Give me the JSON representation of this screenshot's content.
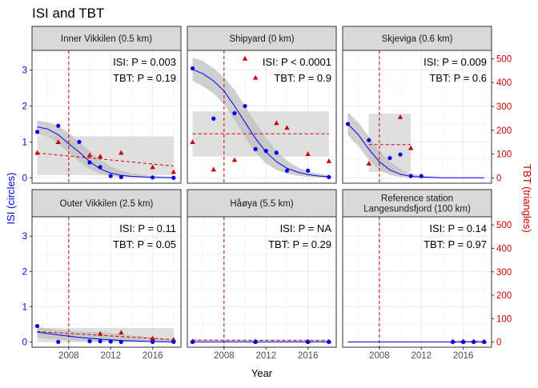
{
  "chart_data": {
    "type": "scatter",
    "title": "ISI and TBT",
    "xlabel": "Year",
    "ylabel_left": "ISI (circles)",
    "ylabel_right": "TBT (triangles)",
    "xlim": [
      2004.5,
      2018.7
    ],
    "x_ticks": [
      2008,
      2012,
      2016
    ],
    "x_tick_labels": [
      "2008",
      "2012",
      "2016"
    ],
    "ylim_left": [
      -0.15,
      3.55
    ],
    "y_ticks_left": [
      0,
      1,
      2,
      3
    ],
    "y_tick_labels_left": [
      "0",
      "1",
      "2",
      "3"
    ],
    "ylim_right": [
      -22,
      535
    ],
    "y_ticks_right": [
      0,
      100,
      200,
      300,
      400,
      500
    ],
    "y_tick_labels_right": [
      "0",
      "100",
      "200",
      "300",
      "400",
      "500"
    ],
    "ban_year": 2008,
    "grid": true,
    "colors": {
      "isi": "#0000ee",
      "tbt": "#cc0000",
      "band": "#d9d9d9",
      "strip": "#d9d9d9",
      "panel_border": "#333333",
      "grid": "#ebebeb"
    },
    "panels": [
      {
        "title": "Inner Vikkilen (0.5 km)",
        "title_lines": [
          "Inner Vikkilen (0.5 km)"
        ],
        "isi_p": "ISI: P =  0.003",
        "tbt_p": "TBT: P =  0.19",
        "isi_points": [
          [
            2005,
            1.28
          ],
          [
            2007,
            1.45
          ],
          [
            2009,
            1.0
          ],
          [
            2010,
            0.43
          ],
          [
            2011,
            0.3
          ],
          [
            2012,
            0.05
          ],
          [
            2013,
            0.02
          ],
          [
            2016,
            0.01
          ],
          [
            2018,
            0.0
          ]
        ],
        "isi_fit": [
          [
            2005,
            1.42
          ],
          [
            2006,
            1.36
          ],
          [
            2007,
            1.2
          ],
          [
            2008,
            0.95
          ],
          [
            2009,
            0.72
          ],
          [
            2010,
            0.45
          ],
          [
            2011,
            0.25
          ],
          [
            2012,
            0.13
          ],
          [
            2013,
            0.07
          ],
          [
            2014,
            0.04
          ],
          [
            2016,
            0.01
          ],
          [
            2018,
            0.0
          ]
        ],
        "isi_band_upper": [
          [
            2005,
            1.6
          ],
          [
            2006,
            1.55
          ],
          [
            2007,
            1.45
          ],
          [
            2008,
            1.25
          ],
          [
            2009,
            1.0
          ],
          [
            2010,
            0.75
          ],
          [
            2011,
            0.5
          ],
          [
            2012,
            0.32
          ],
          [
            2013,
            0.2
          ],
          [
            2014,
            0.12
          ],
          [
            2016,
            0.05
          ],
          [
            2018,
            0.03
          ]
        ],
        "isi_band_lower": [
          [
            2005,
            1.2
          ],
          [
            2006,
            1.15
          ],
          [
            2007,
            0.95
          ],
          [
            2008,
            0.7
          ],
          [
            2009,
            0.45
          ],
          [
            2010,
            0.25
          ],
          [
            2011,
            0.11
          ],
          [
            2012,
            0.05
          ],
          [
            2013,
            0.02
          ],
          [
            2014,
            0.01
          ],
          [
            2016,
            0.0
          ],
          [
            2018,
            0.0
          ]
        ],
        "tbt_points": [
          [
            2005,
            105
          ],
          [
            2007,
            150
          ],
          [
            2010,
            95
          ],
          [
            2011,
            90
          ],
          [
            2013,
            105
          ],
          [
            2016,
            45
          ],
          [
            2018,
            25
          ]
        ],
        "tbt_fit": [
          [
            2005,
            105
          ],
          [
            2018,
            50
          ]
        ],
        "tbt_band": {
          "x": [
            2005,
            2018
          ],
          "lower": 12,
          "upper": 175
        }
      },
      {
        "title": "Shipyard (0 km)",
        "title_lines": [
          "Shipyard (0 km)"
        ],
        "isi_p": "ISI: P < 0.0001",
        "tbt_p": "TBT: P =  0.9",
        "isi_points": [
          [
            2005,
            3.05
          ],
          [
            2007,
            1.65
          ],
          [
            2009,
            1.8
          ],
          [
            2010,
            2.0
          ],
          [
            2011,
            0.8
          ],
          [
            2012,
            0.75
          ],
          [
            2013,
            0.7
          ],
          [
            2014,
            0.2
          ],
          [
            2016,
            0.2
          ],
          [
            2018,
            0.02
          ]
        ],
        "isi_fit": [
          [
            2005,
            3.02
          ],
          [
            2006,
            2.9
          ],
          [
            2007,
            2.7
          ],
          [
            2008,
            2.42
          ],
          [
            2009,
            2.0
          ],
          [
            2010,
            1.55
          ],
          [
            2011,
            1.1
          ],
          [
            2012,
            0.72
          ],
          [
            2013,
            0.45
          ],
          [
            2014,
            0.27
          ],
          [
            2015,
            0.16
          ],
          [
            2016,
            0.09
          ],
          [
            2017,
            0.05
          ],
          [
            2018,
            0.03
          ]
        ],
        "isi_band_upper": [
          [
            2005,
            3.35
          ],
          [
            2006,
            3.25
          ],
          [
            2007,
            3.05
          ],
          [
            2008,
            2.8
          ],
          [
            2009,
            2.45
          ],
          [
            2010,
            2.0
          ],
          [
            2011,
            1.55
          ],
          [
            2012,
            1.1
          ],
          [
            2013,
            0.75
          ],
          [
            2014,
            0.48
          ],
          [
            2015,
            0.3
          ],
          [
            2016,
            0.18
          ],
          [
            2017,
            0.11
          ],
          [
            2018,
            0.07
          ]
        ],
        "isi_band_lower": [
          [
            2005,
            2.7
          ],
          [
            2006,
            2.55
          ],
          [
            2007,
            2.35
          ],
          [
            2008,
            2.05
          ],
          [
            2009,
            1.6
          ],
          [
            2010,
            1.15
          ],
          [
            2011,
            0.7
          ],
          [
            2012,
            0.4
          ],
          [
            2013,
            0.22
          ],
          [
            2014,
            0.12
          ],
          [
            2015,
            0.06
          ],
          [
            2016,
            0.03
          ],
          [
            2017,
            0.01
          ],
          [
            2018,
            0.0
          ]
        ],
        "tbt_points": [
          [
            2005,
            150
          ],
          [
            2007,
            35
          ],
          [
            2009,
            75
          ],
          [
            2010,
            500
          ],
          [
            2011,
            420
          ],
          [
            2013,
            230
          ],
          [
            2014,
            210
          ],
          [
            2016,
            100
          ],
          [
            2018,
            70
          ]
        ],
        "tbt_fit": [
          [
            2005,
            185
          ],
          [
            2018,
            185
          ]
        ],
        "tbt_band": {
          "x": [
            2005,
            2018
          ],
          "lower": 90,
          "upper": 280
        }
      },
      {
        "title": "Skjeviga (0.6 km)",
        "title_lines": [
          "Skjeviga (0.6 km)"
        ],
        "isi_p": "ISI: P =  0.009",
        "tbt_p": "TBT: P =  0.6",
        "isi_points": [
          [
            2005,
            1.5
          ],
          [
            2007,
            1.05
          ],
          [
            2009,
            0.55
          ],
          [
            2010,
            0.65
          ],
          [
            2011,
            0.05
          ],
          [
            2012,
            0.05
          ]
        ],
        "isi_fit": [
          [
            2005,
            1.5
          ],
          [
            2006,
            1.2
          ],
          [
            2007,
            0.8
          ],
          [
            2008,
            0.45
          ],
          [
            2009,
            0.22
          ],
          [
            2010,
            0.1
          ],
          [
            2011,
            0.04
          ],
          [
            2012,
            0.02
          ],
          [
            2014,
            0.0
          ],
          [
            2018,
            0.0
          ]
        ],
        "isi_band_upper": [
          [
            2005,
            1.82
          ],
          [
            2006,
            1.55
          ],
          [
            2007,
            1.15
          ],
          [
            2008,
            0.75
          ],
          [
            2009,
            0.45
          ],
          [
            2010,
            0.25
          ],
          [
            2011,
            0.12
          ],
          [
            2012,
            0.06
          ],
          [
            2014,
            0.02
          ],
          [
            2018,
            0.01
          ]
        ],
        "isi_band_lower": [
          [
            2005,
            1.18
          ],
          [
            2006,
            0.88
          ],
          [
            2007,
            0.5
          ],
          [
            2008,
            0.22
          ],
          [
            2009,
            0.08
          ],
          [
            2010,
            0.02
          ],
          [
            2011,
            0.01
          ],
          [
            2012,
            0.0
          ],
          [
            2014,
            0.0
          ],
          [
            2018,
            0.0
          ]
        ],
        "tbt_points": [
          [
            2007,
            60
          ],
          [
            2010,
            255
          ],
          [
            2011,
            125
          ]
        ],
        "tbt_fit": [
          [
            2007,
            140
          ],
          [
            2011,
            140
          ]
        ],
        "tbt_band": {
          "x": [
            2007,
            2011
          ],
          "lower": 25,
          "upper": 270
        }
      },
      {
        "title": "Outer Vikkilen (2.5 km)",
        "title_lines": [
          "Outer Vikkilen (2.5 km)"
        ],
        "isi_p": "ISI: P =  0.11",
        "tbt_p": "TBT: P =  0.05",
        "isi_points": [
          [
            2005,
            0.45
          ],
          [
            2007,
            0.0
          ],
          [
            2010,
            0.02
          ],
          [
            2011,
            0.02
          ],
          [
            2012,
            0.01
          ],
          [
            2013,
            0.0
          ],
          [
            2016,
            0.0
          ],
          [
            2018,
            0.0
          ]
        ],
        "isi_fit": [
          [
            2005,
            0.28
          ],
          [
            2007,
            0.2
          ],
          [
            2009,
            0.13
          ],
          [
            2011,
            0.08
          ],
          [
            2013,
            0.04
          ],
          [
            2016,
            0.01
          ],
          [
            2018,
            0.0
          ]
        ],
        "isi_band_upper": [
          [
            2005,
            0.42
          ],
          [
            2007,
            0.35
          ],
          [
            2009,
            0.3
          ],
          [
            2011,
            0.28
          ],
          [
            2013,
            0.22
          ],
          [
            2016,
            0.12
          ],
          [
            2018,
            0.08
          ]
        ],
        "isi_band_lower": [
          [
            2005,
            0.12
          ],
          [
            2007,
            0.07
          ],
          [
            2009,
            0.03
          ],
          [
            2011,
            0.01
          ],
          [
            2013,
            0.0
          ],
          [
            2016,
            0.0
          ],
          [
            2018,
            0.0
          ]
        ],
        "tbt_points": [
          [
            2011,
            35
          ],
          [
            2013,
            40
          ],
          [
            2016,
            15
          ],
          [
            2018,
            10
          ]
        ],
        "tbt_fit": [
          [
            2005,
            45
          ],
          [
            2018,
            10
          ]
        ],
        "tbt_band": {
          "x": [
            2005,
            2018
          ],
          "lower": 0,
          "upper": 60
        }
      },
      {
        "title": "Håøya (5.5 km)",
        "title_lines": [
          "Håøya (5.5 km)"
        ],
        "isi_p": "ISI: P =  NA",
        "tbt_p": "TBT: P =  0.29",
        "isi_points": [
          [
            2005,
            0.0
          ],
          [
            2011,
            0.0
          ],
          [
            2016,
            0.0
          ],
          [
            2018,
            0.0
          ]
        ],
        "isi_fit": [
          [
            2005,
            0.0
          ],
          [
            2018,
            0.0
          ]
        ],
        "isi_band_upper": [],
        "isi_band_lower": [],
        "tbt_points": [
          [
            2005,
            3
          ],
          [
            2011,
            3
          ],
          [
            2016,
            2
          ],
          [
            2018,
            2
          ]
        ],
        "tbt_fit": [
          [
            2005,
            8
          ],
          [
            2018,
            6
          ]
        ],
        "tbt_band": {
          "x": [
            2005,
            2018
          ],
          "lower": 3,
          "upper": 12
        }
      },
      {
        "title": "Reference station Langesundsfjord (100 km)",
        "title_lines": [
          "Reference station",
          "Langesundsfjord (100 km)"
        ],
        "isi_p": "ISI: P =  0.14",
        "tbt_p": "TBT: P =  0.97",
        "isi_points": [
          [
            2015,
            0.0
          ],
          [
            2016,
            0.0
          ],
          [
            2017,
            0.0
          ],
          [
            2018,
            0.0
          ]
        ],
        "isi_fit": [
          [
            2005,
            0.0
          ],
          [
            2018,
            0.0
          ]
        ],
        "isi_band_upper": [],
        "isi_band_lower": [],
        "tbt_points": [
          [
            2015,
            3
          ],
          [
            2016,
            3
          ],
          [
            2017,
            3
          ],
          [
            2018,
            2
          ]
        ],
        "tbt_fit": [
          [
            2015,
            2
          ],
          [
            2018,
            2
          ]
        ],
        "tbt_band": {
          "x": [
            2015,
            2018
          ],
          "lower": 0,
          "upper": 6
        }
      }
    ]
  }
}
